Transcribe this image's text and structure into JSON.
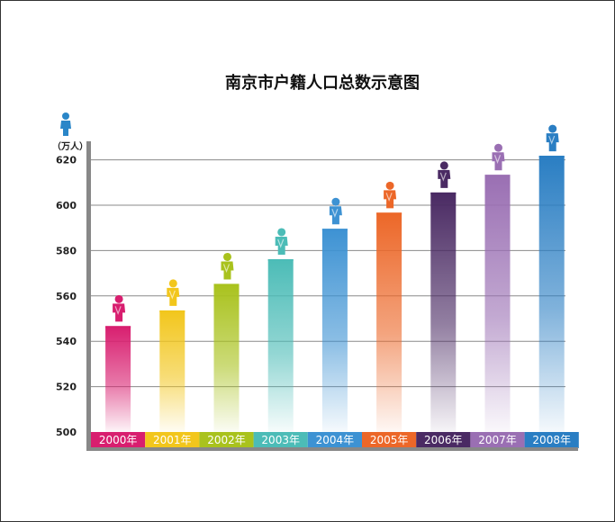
{
  "chart_data": {
    "type": "bar",
    "title": "南京市户籍人口总数示意图",
    "unit": "（万人）",
    "categories": [
      "2000年",
      "2001年",
      "2002年",
      "2003年",
      "2004年",
      "2005年",
      "2006年",
      "2007年",
      "2008年"
    ],
    "values": [
      546.7,
      553.6,
      565.3,
      576.2,
      589.6,
      596.7,
      605.6,
      613.4,
      621.8
    ],
    "ylim": [
      500,
      625
    ],
    "yticks": [
      500,
      520,
      540,
      560,
      580,
      600,
      620
    ],
    "grid": true,
    "colors": [
      "#d81e6f",
      "#f2c61c",
      "#a9c21d",
      "#4cbcb7",
      "#3d92d3",
      "#ec6728",
      "#4a2a63",
      "#9a6fb3",
      "#2a7ec3"
    ]
  }
}
